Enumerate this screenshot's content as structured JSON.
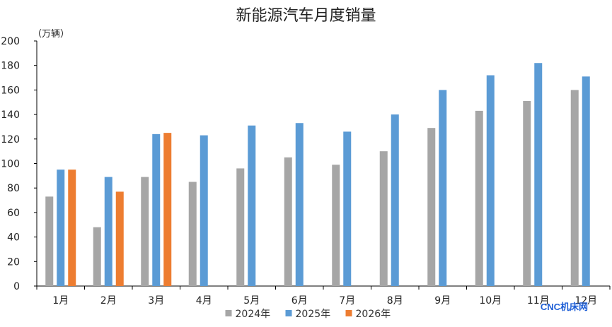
{
  "chart_data": {
    "type": "bar",
    "title": "新能源汽车月度销量",
    "unit_label": "（万辆）",
    "categories": [
      "1月",
      "2月",
      "3月",
      "4月",
      "5月",
      "6月",
      "7月",
      "8月",
      "9月",
      "10月",
      "11月",
      "12月"
    ],
    "series": [
      {
        "name": "2024年",
        "color": "#a6a6a6",
        "values": [
          73,
          48,
          89,
          85,
          96,
          105,
          99,
          110,
          129,
          143,
          151,
          160
        ]
      },
      {
        "name": "2025年",
        "color": "#5b9bd5",
        "values": [
          95,
          89,
          124,
          123,
          131,
          133,
          126,
          140,
          160,
          172,
          182,
          171
        ]
      },
      {
        "name": "2026年",
        "color": "#ed7d31",
        "values": [
          95,
          77,
          125,
          null,
          null,
          null,
          null,
          null,
          null,
          null,
          null,
          null
        ]
      }
    ],
    "ylim": [
      0,
      200
    ],
    "yticks": [
      0,
      20,
      40,
      60,
      80,
      100,
      120,
      140,
      160,
      180,
      200
    ],
    "grid": false,
    "legend_position": "bottom"
  },
  "watermark": "CNC机床网"
}
